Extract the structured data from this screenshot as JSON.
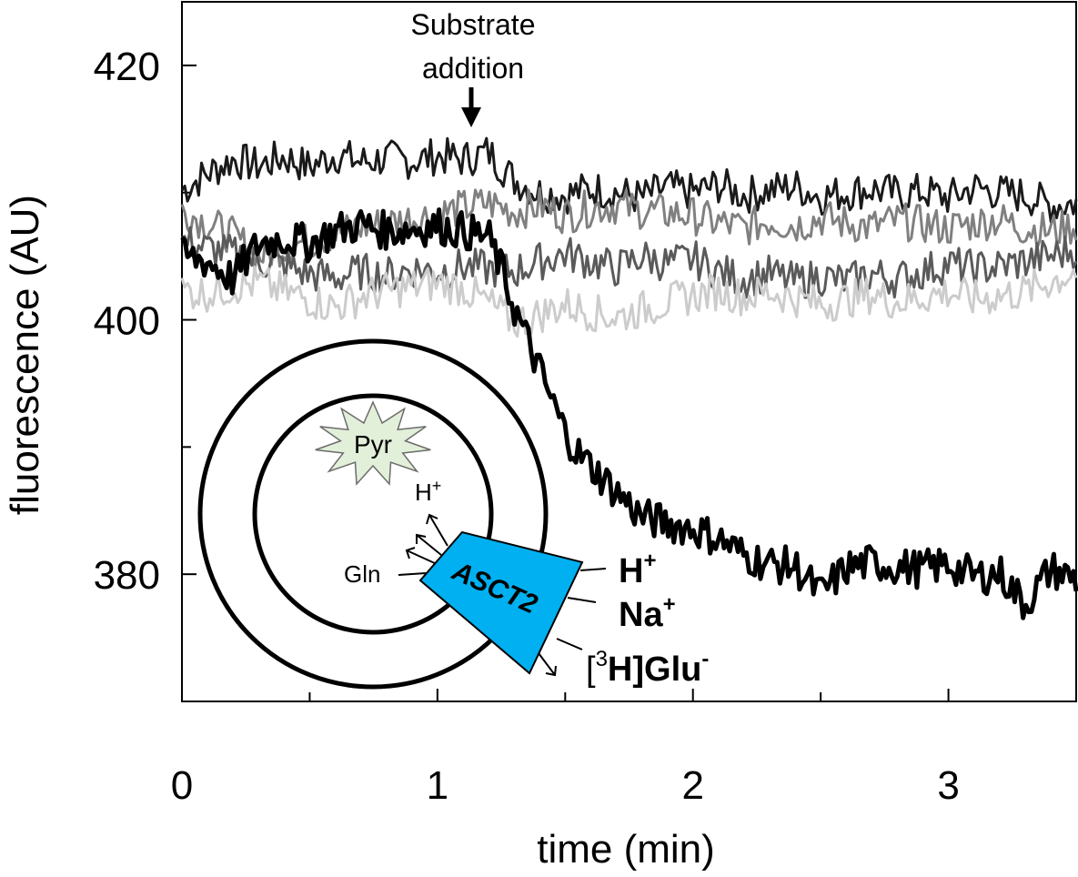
{
  "chart_data": {
    "type": "line",
    "xlabel": "time (min)",
    "ylabel": "fluorescence (AU)",
    "xlim": [
      0,
      3.5
    ],
    "ylim": [
      370,
      425
    ],
    "x_ticks": [
      0,
      1,
      2,
      3
    ],
    "x_minor_ticks": [
      0.5,
      1.5,
      2.5
    ],
    "y_ticks": [
      420,
      400,
      380
    ],
    "y_minor_ticks": [
      410,
      390
    ],
    "grid": false,
    "legend": "none",
    "annotation": {
      "line1": "Substrate",
      "line2": "addition",
      "x": 1.13
    },
    "series": [
      {
        "color": "#1a1a1a",
        "stroke_width": 3,
        "x": [
          0.0,
          0.1,
          0.2,
          0.3,
          0.4,
          0.5,
          0.6,
          0.7,
          0.8,
          0.9,
          1.0,
          1.1,
          1.2,
          1.3,
          1.4,
          1.5,
          1.6,
          1.7,
          1.8,
          1.9,
          2.0,
          2.1,
          2.2,
          2.3,
          2.4,
          2.5,
          2.6,
          2.7,
          2.8,
          2.9,
          3.0,
          3.1,
          3.2,
          3.3,
          3.4,
          3.5
        ],
        "y": [
          410.2,
          411.5,
          412.6,
          412.1,
          412.8,
          412.0,
          413.0,
          412.4,
          412.7,
          412.5,
          412.9,
          412.6,
          413.2,
          411.0,
          410.0,
          409.8,
          410.3,
          410.0,
          409.6,
          410.4,
          410.0,
          410.6,
          409.8,
          410.2,
          410.5,
          409.7,
          410.0,
          410.3,
          409.9,
          410.1,
          409.6,
          410.4,
          410.0,
          409.8,
          409.0,
          409.2
        ]
      },
      {
        "color": "#808080",
        "stroke_width": 3,
        "x": [
          0.0,
          0.1,
          0.2,
          0.3,
          0.4,
          0.5,
          0.6,
          0.7,
          0.8,
          0.9,
          1.0,
          1.1,
          1.2,
          1.3,
          1.4,
          1.5,
          1.6,
          1.7,
          1.8,
          1.9,
          2.0,
          2.1,
          2.2,
          2.3,
          2.4,
          2.5,
          2.6,
          2.7,
          2.8,
          2.9,
          3.0,
          3.1,
          3.2,
          3.3,
          3.4,
          3.5
        ],
        "y": [
          408.6,
          407.6,
          406.6,
          405.0,
          405.8,
          406.2,
          406.8,
          407.3,
          407.6,
          408.0,
          408.3,
          408.8,
          409.2,
          408.5,
          409.0,
          408.2,
          408.8,
          409.0,
          408.6,
          408.4,
          408.2,
          407.6,
          407.2,
          407.8,
          407.4,
          408.0,
          407.6,
          407.3,
          407.8,
          407.5,
          407.2,
          407.6,
          407.9,
          407.2,
          407.0,
          407.4
        ]
      },
      {
        "color": "#5a5a5a",
        "stroke_width": 3,
        "x": [
          0.0,
          0.1,
          0.2,
          0.3,
          0.4,
          0.5,
          0.6,
          0.7,
          0.8,
          0.9,
          1.0,
          1.1,
          1.2,
          1.3,
          1.4,
          1.5,
          1.6,
          1.7,
          1.8,
          1.9,
          2.0,
          2.1,
          2.2,
          2.3,
          2.4,
          2.5,
          2.6,
          2.7,
          2.8,
          2.9,
          3.0,
          3.1,
          3.2,
          3.3,
          3.4,
          3.5
        ],
        "y": [
          406.2,
          405.6,
          405.2,
          404.6,
          404.2,
          403.6,
          403.3,
          403.8,
          403.5,
          404.0,
          403.8,
          404.2,
          404.0,
          403.8,
          404.6,
          405.2,
          404.6,
          404.0,
          405.0,
          404.4,
          404.8,
          403.8,
          403.2,
          403.6,
          403.0,
          403.4,
          403.0,
          403.6,
          403.2,
          403.8,
          404.4,
          404.0,
          404.2,
          404.6,
          405.0,
          405.6
        ]
      },
      {
        "color": "#cccccc",
        "stroke_width": 3,
        "x": [
          0.0,
          0.1,
          0.2,
          0.3,
          0.4,
          0.5,
          0.6,
          0.7,
          0.8,
          0.9,
          1.0,
          1.1,
          1.2,
          1.3,
          1.4,
          1.5,
          1.6,
          1.7,
          1.8,
          1.9,
          2.0,
          2.1,
          2.2,
          2.3,
          2.4,
          2.5,
          2.6,
          2.7,
          2.8,
          2.9,
          3.0,
          3.1,
          3.2,
          3.3,
          3.4,
          3.5
        ],
        "y": [
          402.3,
          402.1,
          402.6,
          402.9,
          402.2,
          401.6,
          401.0,
          401.8,
          402.3,
          402.6,
          402.9,
          402.5,
          401.3,
          399.8,
          400.4,
          401.2,
          400.6,
          400.2,
          400.8,
          401.4,
          401.9,
          402.3,
          401.8,
          402.2,
          401.7,
          401.2,
          401.6,
          402.0,
          401.4,
          401.8,
          402.2,
          401.6,
          401.9,
          402.2,
          403.0,
          403.8
        ]
      },
      {
        "color": "#000000",
        "stroke_width": 5,
        "x": [
          0.0,
          0.1,
          0.2,
          0.3,
          0.4,
          0.5,
          0.6,
          0.7,
          0.8,
          0.9,
          1.0,
          1.1,
          1.2,
          1.25,
          1.3,
          1.35,
          1.4,
          1.45,
          1.5,
          1.55,
          1.6,
          1.7,
          1.8,
          1.9,
          2.0,
          2.1,
          2.2,
          2.3,
          2.4,
          2.5,
          2.6,
          2.7,
          2.8,
          2.9,
          3.0,
          3.1,
          3.2,
          3.3,
          3.4,
          3.5
        ],
        "y": [
          405.0,
          404.6,
          403.2,
          406.0,
          406.4,
          406.0,
          407.0,
          407.5,
          407.0,
          407.2,
          407.4,
          407.0,
          406.5,
          404.0,
          401.0,
          398.5,
          396.0,
          393.5,
          391.2,
          389.5,
          388.5,
          386.5,
          384.5,
          384.0,
          383.6,
          382.8,
          381.5,
          380.8,
          380.6,
          378.4,
          380.5,
          380.9,
          380.6,
          380.4,
          380.8,
          379.8,
          380.1,
          377.6,
          380.4,
          379.6
        ]
      }
    ]
  },
  "inset": {
    "pyr_label": "Pyr",
    "inner_h_label": "H",
    "inner_h_sup": "+",
    "gln_label": "Gln",
    "transporter_label": "ASCT2",
    "ext_h_label": "H",
    "ext_h_sup": "+",
    "ext_na_label": "Na",
    "ext_na_sup": "+",
    "glu_open": "[",
    "glu_iso": "3",
    "glu_main": "H]Glu",
    "glu_charge": "-",
    "transporter_color": "#00b0f0",
    "pyr_color": "#e2efd9"
  }
}
